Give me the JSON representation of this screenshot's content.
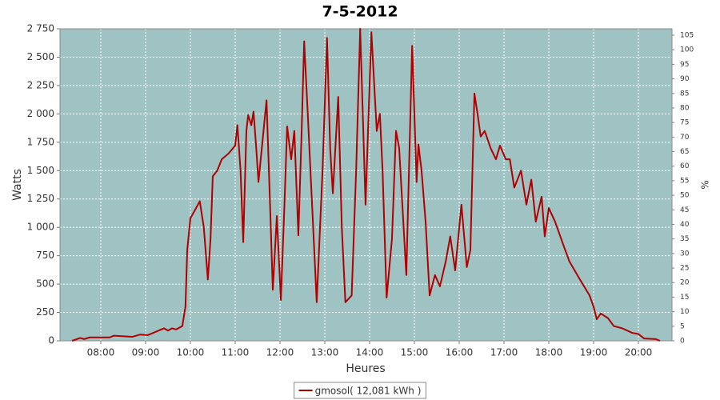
{
  "chart_data": {
    "type": "line",
    "title": "7-5-2012",
    "xlabel": "Heures",
    "ylabel": "Watts",
    "y2label": "%",
    "x": [
      7.36,
      7.54,
      7.63,
      7.75,
      8.07,
      8.2,
      8.29,
      8.7,
      8.88,
      9.05,
      9.23,
      9.41,
      9.5,
      9.59,
      9.68,
      9.82,
      9.89,
      9.93,
      10.0,
      10.1,
      10.21,
      10.3,
      10.39,
      10.45,
      10.5,
      10.6,
      10.7,
      10.85,
      11.0,
      11.05,
      11.12,
      11.18,
      11.25,
      11.29,
      11.36,
      11.41,
      11.47,
      11.52,
      11.62,
      11.7,
      11.77,
      11.84,
      11.93,
      12.02,
      12.1,
      12.16,
      12.25,
      12.32,
      12.41,
      12.48,
      12.54,
      12.62,
      12.82,
      12.95,
      13.05,
      13.12,
      13.18,
      13.3,
      13.38,
      13.46,
      13.6,
      13.7,
      13.79,
      13.91,
      14.04,
      14.16,
      14.23,
      14.29,
      14.38,
      14.5,
      14.59,
      14.66,
      14.82,
      14.95,
      15.05,
      15.09,
      15.16,
      15.25,
      15.34,
      15.46,
      15.57,
      15.7,
      15.8,
      15.91,
      16.05,
      16.17,
      16.25,
      16.34,
      16.41,
      16.48,
      16.57,
      16.7,
      16.82,
      16.91,
      17.04,
      17.13,
      17.23,
      17.38,
      17.5,
      17.61,
      17.71,
      17.84,
      17.91,
      18.0,
      18.14,
      18.32,
      18.46,
      18.68,
      18.91,
      19.0,
      19.07,
      19.16,
      19.32,
      19.45,
      19.64,
      19.86,
      20.0,
      20.13,
      20.39,
      20.48
    ],
    "series": [
      {
        "name": "gmosol( 12,081 kWh )",
        "color": "#b00000",
        "values": [
          0,
          25,
          15,
          30,
          30,
          30,
          45,
          35,
          55,
          50,
          80,
          110,
          90,
          110,
          100,
          130,
          300,
          800,
          1080,
          1150,
          1230,
          1000,
          540,
          900,
          1450,
          1500,
          1600,
          1650,
          1720,
          1900,
          1500,
          870,
          1850,
          1990,
          1900,
          2020,
          1700,
          1400,
          1800,
          2120,
          1300,
          450,
          1100,
          360,
          1200,
          1890,
          1600,
          1850,
          930,
          1800,
          2640,
          2000,
          340,
          1500,
          2670,
          1700,
          1300,
          2150,
          1000,
          340,
          400,
          1500,
          2750,
          1200,
          2720,
          1850,
          2000,
          1500,
          380,
          900,
          1850,
          1700,
          580,
          2600,
          1400,
          1730,
          1500,
          1050,
          400,
          580,
          480,
          700,
          920,
          620,
          1200,
          650,
          800,
          2180,
          2000,
          1800,
          1850,
          1700,
          1600,
          1720,
          1600,
          1600,
          1350,
          1500,
          1200,
          1420,
          1050,
          1270,
          920,
          1170,
          1050,
          850,
          700,
          550,
          400,
          300,
          190,
          240,
          200,
          130,
          110,
          70,
          60,
          20,
          15,
          0
        ]
      }
    ],
    "xlim": [
      7.09,
      20.75
    ],
    "xticks": [
      {
        "value": 8,
        "label": "08:00"
      },
      {
        "value": 9,
        "label": "09:00"
      },
      {
        "value": 10,
        "label": "10:00"
      },
      {
        "value": 11,
        "label": "11:00"
      },
      {
        "value": 12,
        "label": "12:00"
      },
      {
        "value": 13,
        "label": "13:00"
      },
      {
        "value": 14,
        "label": "14:00"
      },
      {
        "value": 15,
        "label": "15:00"
      },
      {
        "value": 16,
        "label": "16:00"
      },
      {
        "value": 17,
        "label": "17:00"
      },
      {
        "value": 18,
        "label": "18:00"
      },
      {
        "value": 19,
        "label": "19:00"
      },
      {
        "value": 20,
        "label": "20:00"
      }
    ],
    "ylim": [
      0,
      2750
    ],
    "yticks": [
      0,
      250,
      500,
      750,
      {
        "value": 1000,
        "label": "1 000"
      },
      {
        "value": 1250,
        "label": "1 250"
      },
      {
        "value": 1500,
        "label": "1 500"
      },
      {
        "value": 1750,
        "label": "1 750"
      },
      {
        "value": 2000,
        "label": "2 000"
      },
      {
        "value": 2250,
        "label": "2 250"
      },
      {
        "value": 2500,
        "label": "2 500"
      },
      {
        "value": 2750,
        "label": "2 750"
      }
    ],
    "y2lim": [
      0,
      107.2
    ],
    "y2ticks": [
      0,
      5,
      10,
      15,
      20,
      25,
      30,
      35,
      40,
      45,
      50,
      55,
      60,
      65,
      70,
      75,
      80,
      85,
      90,
      95,
      100,
      105
    ],
    "grid": true,
    "legend": "bottom"
  }
}
